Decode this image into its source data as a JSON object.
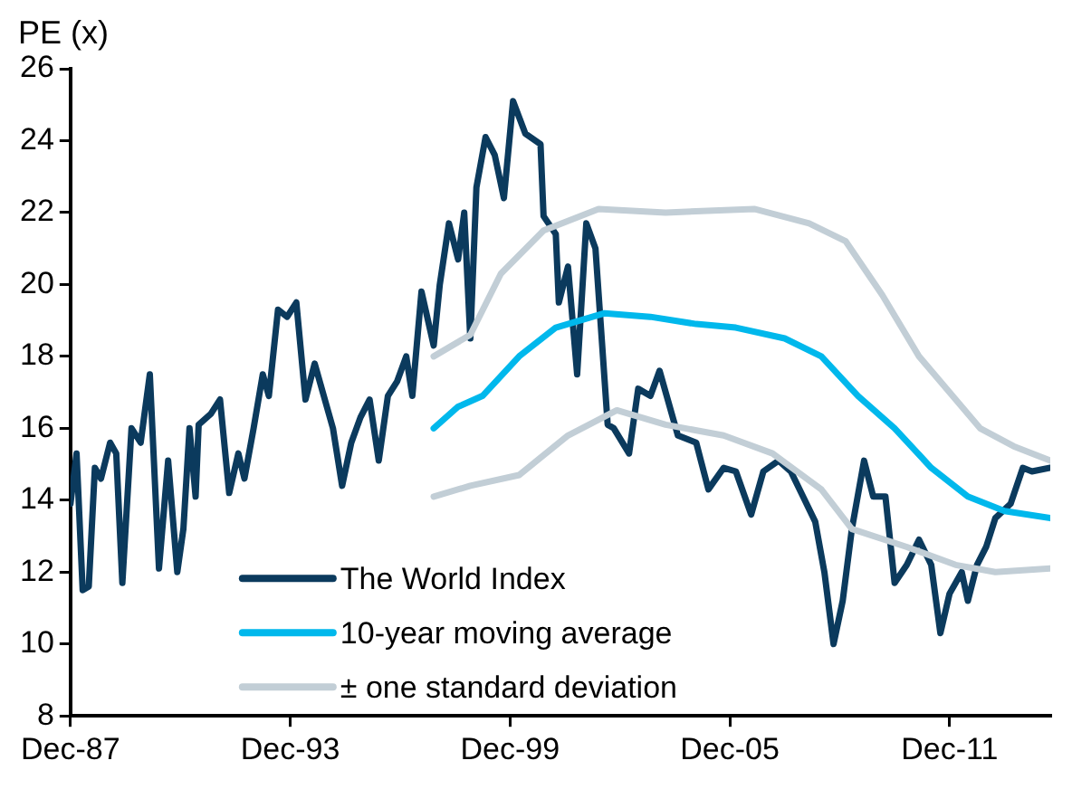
{
  "chart_data": {
    "type": "line",
    "ylabel": "PE (x)",
    "xlim": [
      "1987-12",
      "2014-09"
    ],
    "xticks": [
      {
        "value": "1987-12",
        "label": "Dec-87"
      },
      {
        "value": "1993-12",
        "label": "Dec-93"
      },
      {
        "value": "1999-12",
        "label": "Dec-99"
      },
      {
        "value": "2005-12",
        "label": "Dec-05"
      },
      {
        "value": "2011-12",
        "label": "Dec-11"
      }
    ],
    "ylim": [
      8,
      26
    ],
    "yticks": [
      8,
      10,
      12,
      14,
      16,
      18,
      20,
      22,
      24,
      26
    ],
    "grid": false,
    "legend": "bottom left",
    "marker": "none",
    "line_style": "solid",
    "series": [
      {
        "name": "The World Index",
        "color": "#0b3a5d",
        "x": [
          "1987-12",
          "1988-02",
          "1988-04",
          "1988-06",
          "1988-08",
          "1988-10",
          "1989-01",
          "1989-03",
          "1989-05",
          "1989-08",
          "1989-11",
          "1990-02",
          "1990-05",
          "1990-08",
          "1990-11",
          "1991-01",
          "1991-03",
          "1991-05",
          "1991-06",
          "1991-10",
          "1992-01",
          "1992-04",
          "1992-07",
          "1992-09",
          "1992-12",
          "1993-03",
          "1993-05",
          "1993-08",
          "1993-11",
          "1994-02",
          "1994-05",
          "1994-08",
          "1995-02",
          "1995-05",
          "1995-08",
          "1995-11",
          "1996-02",
          "1996-05",
          "1996-08",
          "1996-11",
          "1997-02",
          "1997-04",
          "1997-07",
          "1997-11",
          "1998-01",
          "1998-04",
          "1998-07",
          "1998-09",
          "1998-11",
          "1999-01",
          "1999-04",
          "1999-07",
          "1999-10",
          "2000-01",
          "2000-05",
          "2000-10",
          "2000-11",
          "2001-03",
          "2001-04",
          "2001-07",
          "2001-10",
          "2002-01",
          "2002-04",
          "2002-08",
          "2002-10",
          "2003-03",
          "2003-06",
          "2003-10",
          "2004-01",
          "2004-07",
          "2005-01",
          "2005-05",
          "2005-10",
          "2006-02",
          "2006-07",
          "2006-11",
          "2007-04",
          "2007-08",
          "2007-12",
          "2008-04",
          "2008-07",
          "2008-10",
          "2009-01",
          "2009-04",
          "2009-08",
          "2009-11",
          "2010-03",
          "2010-06",
          "2010-10",
          "2011-02",
          "2011-06",
          "2011-09",
          "2011-12",
          "2012-04",
          "2012-06",
          "2012-09",
          "2012-12",
          "2013-03",
          "2013-08",
          "2013-12",
          "2014-03",
          "2014-09"
        ],
        "values": [
          13.9,
          15.3,
          11.5,
          11.6,
          14.9,
          14.6,
          15.6,
          15.3,
          11.7,
          16.0,
          15.6,
          17.5,
          12.1,
          15.1,
          12.0,
          13.2,
          16.0,
          14.1,
          16.1,
          16.4,
          16.8,
          14.2,
          15.3,
          14.6,
          16.0,
          17.5,
          16.9,
          19.3,
          19.1,
          19.5,
          16.8,
          17.8,
          16.0,
          14.4,
          15.6,
          16.3,
          16.8,
          15.1,
          16.9,
          17.3,
          18.0,
          16.9,
          19.8,
          18.3,
          20.0,
          21.7,
          20.7,
          22.0,
          18.5,
          22.7,
          24.1,
          23.6,
          22.4,
          25.1,
          24.2,
          23.9,
          21.9,
          21.4,
          19.5,
          20.5,
          17.5,
          21.7,
          21.0,
          16.1,
          16.0,
          15.3,
          17.1,
          16.9,
          17.6,
          15.8,
          15.6,
          14.3,
          14.9,
          14.8,
          13.6,
          14.8,
          15.1,
          14.8,
          14.1,
          13.4,
          12.0,
          10.0,
          11.2,
          13.2,
          15.1,
          14.1,
          14.1,
          11.7,
          12.2,
          12.9,
          12.2,
          10.3,
          11.4,
          12.0,
          11.2,
          12.2,
          12.7,
          13.5,
          13.9,
          14.9,
          14.8,
          14.9
        ]
      },
      {
        "name": "10-year moving average",
        "color": "#00b8ec",
        "x": [
          "1997-11",
          "1998-07",
          "1999-03",
          "2000-03",
          "2001-03",
          "2002-07",
          "2003-10",
          "2005-01",
          "2006-02",
          "2007-06",
          "2008-06",
          "2009-06",
          "2010-06",
          "2011-06",
          "2012-06",
          "2013-06",
          "2014-09"
        ],
        "values": [
          16.0,
          16.6,
          16.9,
          18.0,
          18.8,
          19.2,
          19.1,
          18.9,
          18.8,
          18.5,
          18.0,
          16.9,
          16.0,
          14.9,
          14.1,
          13.7,
          13.5
        ]
      },
      {
        "name": "± one standard deviation",
        "color": "#c2ced6",
        "x": [
          "1997-11",
          "1998-11",
          "1999-09",
          "2000-11",
          "2002-05",
          "2004-03",
          "2006-08",
          "2008-02",
          "2009-02",
          "2010-02",
          "2011-02",
          "2012-02",
          "2012-10",
          "2013-09",
          "2014-09"
        ],
        "values": [
          18.0,
          18.6,
          20.3,
          21.5,
          22.1,
          22.0,
          22.1,
          21.7,
          21.2,
          19.7,
          18.0,
          16.8,
          16.0,
          15.5,
          15.1
        ]
      },
      {
        "color": "#c2ced6",
        "x": [
          "1997-11",
          "1998-11",
          "2000-03",
          "2001-07",
          "2002-11",
          "2004-03",
          "2005-10",
          "2007-02",
          "2008-06",
          "2009-04",
          "2010-10",
          "2012-02",
          "2013-03",
          "2014-09"
        ],
        "values": [
          14.1,
          14.4,
          14.7,
          15.8,
          16.5,
          16.1,
          15.8,
          15.3,
          14.3,
          13.2,
          12.7,
          12.2,
          12.0,
          12.1
        ]
      }
    ]
  }
}
